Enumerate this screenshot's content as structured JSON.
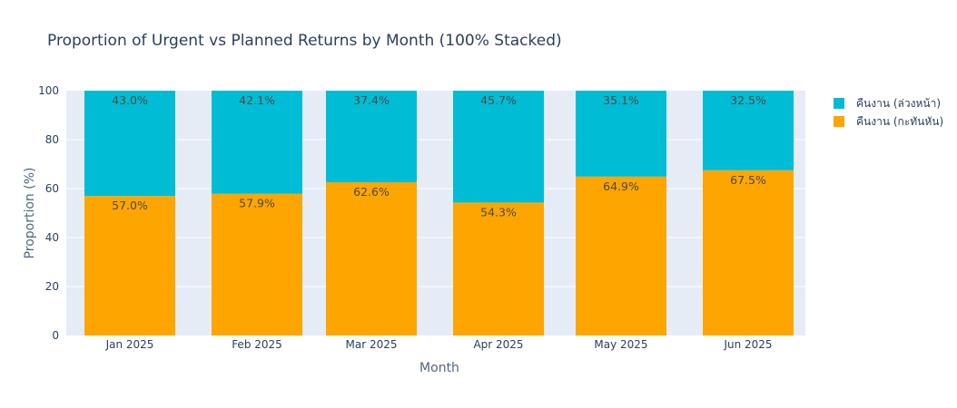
{
  "chart_data": {
    "type": "bar",
    "stacked": "percent",
    "title": "Proportion of Urgent vs Planned Returns by Month (100% Stacked)",
    "xlabel": "Month",
    "ylabel": "Proportion (%)",
    "ylim": [
      0,
      100
    ],
    "yticks": [
      0,
      20,
      40,
      60,
      80,
      100
    ],
    "grid": true,
    "legend_position": "top-right",
    "categories": [
      "Jan 2025",
      "Feb 2025",
      "Mar 2025",
      "Apr 2025",
      "May 2025",
      "Jun 2025"
    ],
    "series": [
      {
        "name": "คืนงาน (กะทันหัน)",
        "color": "#FFA500",
        "values": [
          57.0,
          57.9,
          62.6,
          54.3,
          64.9,
          67.5
        ],
        "labels": [
          "57.0%",
          "57.9%",
          "62.6%",
          "54.3%",
          "64.9%",
          "67.5%"
        ]
      },
      {
        "name": "คืนงาน (ล่วงหน้า)",
        "color": "#00BCD4",
        "values": [
          43.0,
          42.1,
          37.4,
          45.7,
          35.1,
          32.5
        ],
        "labels": [
          "43.0%",
          "42.1%",
          "37.4%",
          "45.7%",
          "35.1%",
          "32.5%"
        ]
      }
    ],
    "legend_order": [
      1,
      0
    ],
    "plot_background": "#E5ECF6",
    "gridline_color": "#FFFFFF"
  }
}
